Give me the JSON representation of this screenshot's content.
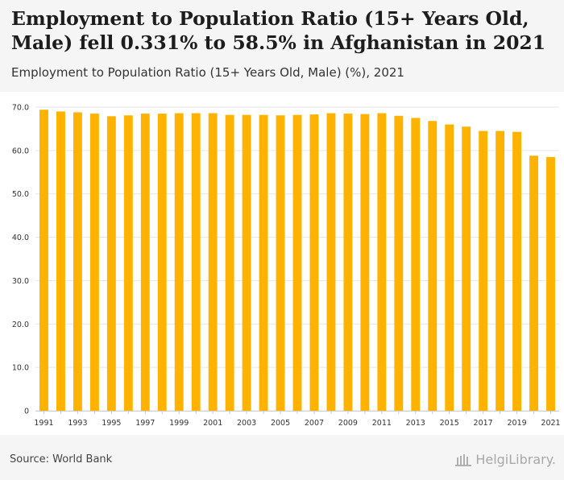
{
  "header": {
    "title": "Employment to Population Ratio (15+ Years Old, Male) fell 0.331% to 58.5% in Afghanistan in 2021",
    "subtitle": "Employment to Population Ratio (15+ Years Old, Male) (%), 2021"
  },
  "footer": {
    "source": "Source: World Bank",
    "logo_text": "HelgiLibrary."
  },
  "colors": {
    "bar": "#FFB300",
    "grid": "#e6e6e6"
  },
  "chart_data": {
    "type": "bar",
    "categories": [
      "1991",
      "1992",
      "1993",
      "1994",
      "1995",
      "1996",
      "1997",
      "1998",
      "1999",
      "2000",
      "2001",
      "2002",
      "2003",
      "2004",
      "2005",
      "2006",
      "2007",
      "2008",
      "2009",
      "2010",
      "2011",
      "2012",
      "2013",
      "2014",
      "2015",
      "2016",
      "2017",
      "2018",
      "2019",
      "2020",
      "2021"
    ],
    "values": [
      69.4,
      69.0,
      68.8,
      68.5,
      67.9,
      68.1,
      68.5,
      68.5,
      68.6,
      68.6,
      68.6,
      68.2,
      68.2,
      68.2,
      68.1,
      68.2,
      68.3,
      68.6,
      68.5,
      68.4,
      68.6,
      68.0,
      67.5,
      66.8,
      66.0,
      65.5,
      64.5,
      64.5,
      64.3,
      58.8,
      58.5
    ],
    "x_tick_labels": [
      "1991",
      "1993",
      "1995",
      "1997",
      "1999",
      "2001",
      "2003",
      "2005",
      "2007",
      "2009",
      "2011",
      "2013",
      "2015",
      "2017",
      "2019",
      "2021"
    ],
    "y_ticks": [
      0,
      10.0,
      20.0,
      30.0,
      40.0,
      50.0,
      60.0,
      70.0
    ],
    "y_tick_labels": [
      "0",
      "10.0",
      "20.0",
      "30.0",
      "40.0",
      "50.0",
      "60.0",
      "70.0"
    ],
    "ylim": [
      0,
      70
    ],
    "grid": true,
    "legend": "none"
  }
}
